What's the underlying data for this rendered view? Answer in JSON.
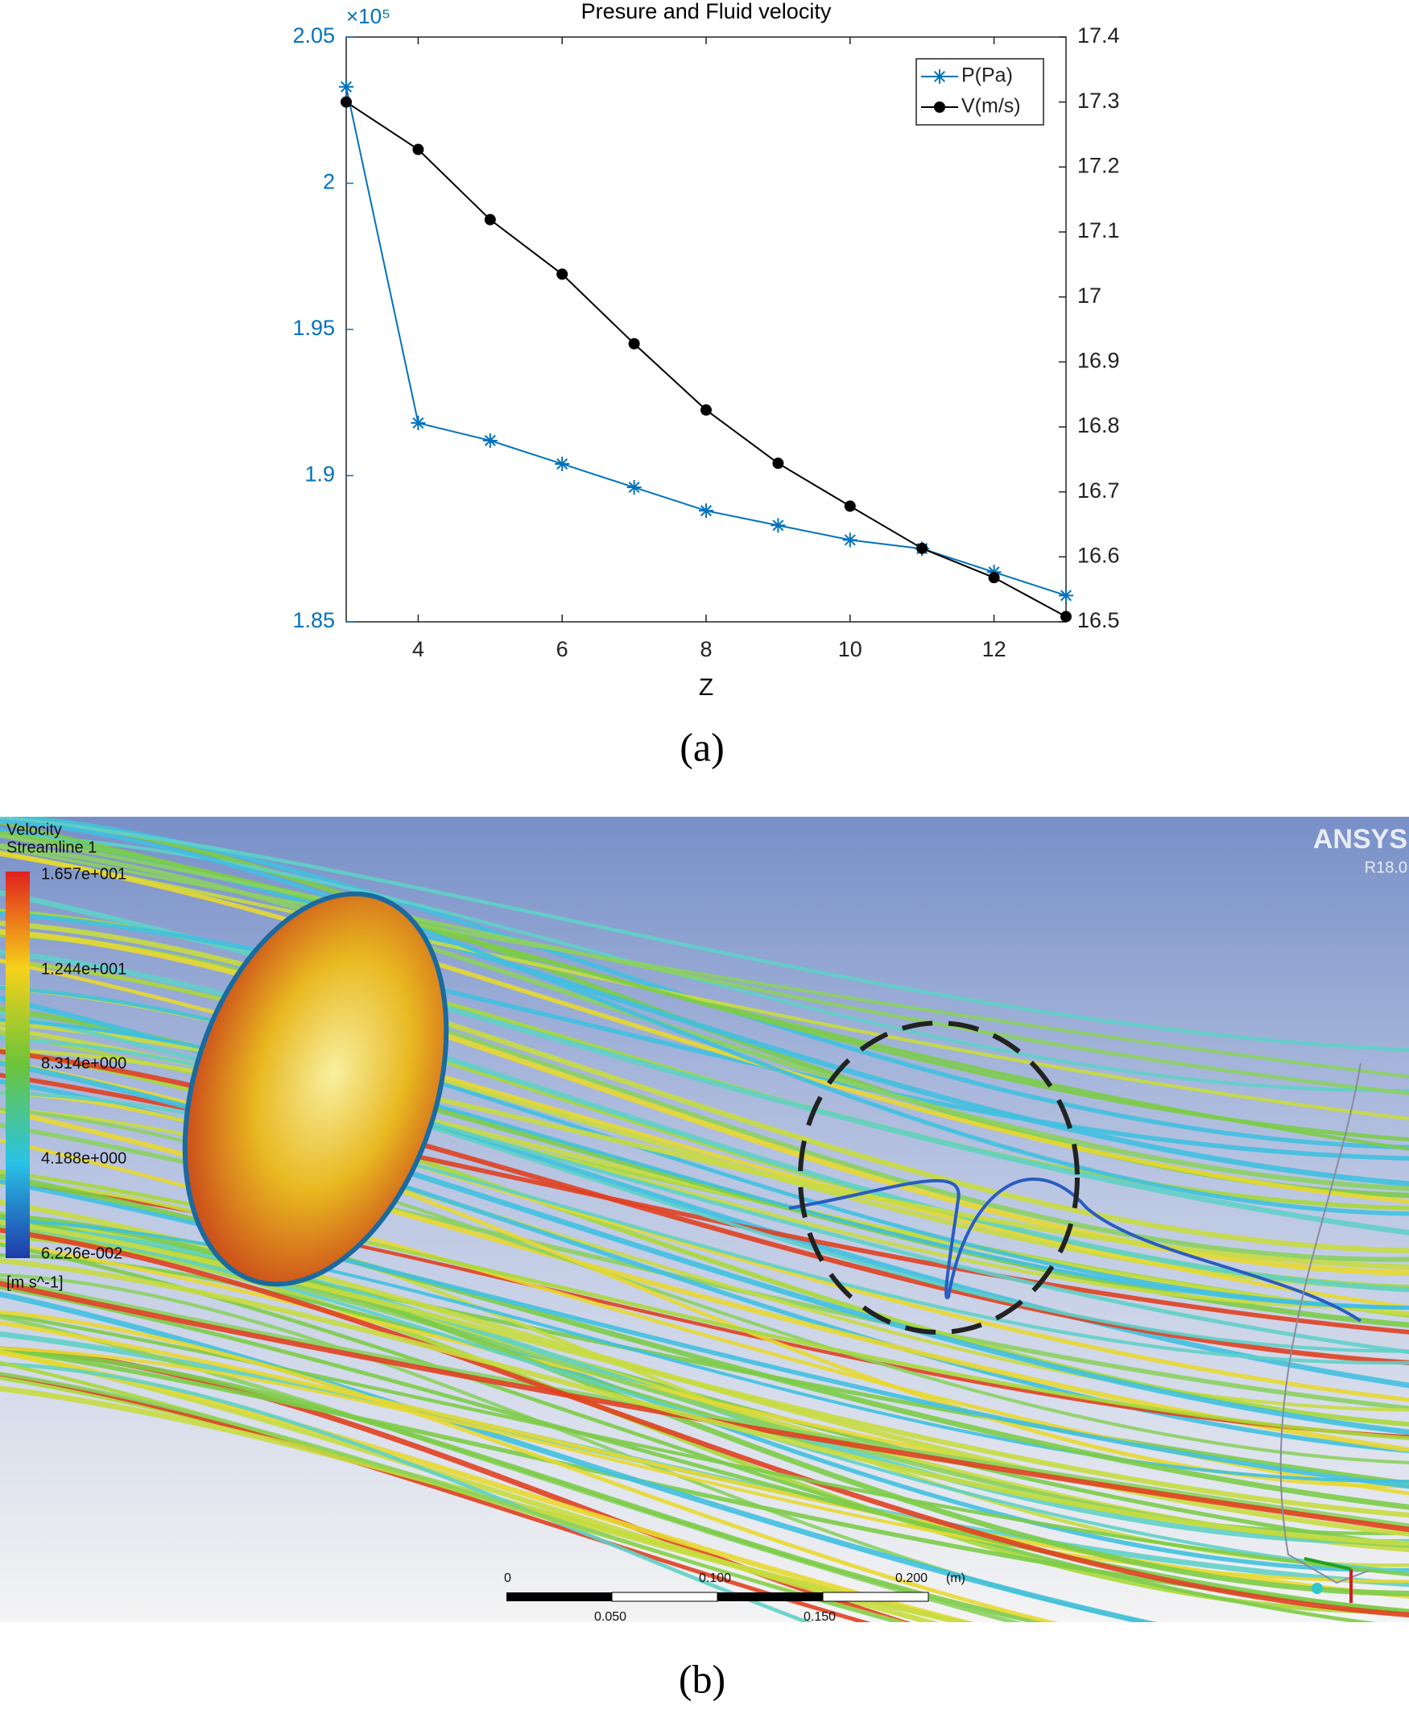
{
  "chart_data": {
    "type": "line",
    "title": "Presure and Fluid velocity",
    "xlabel": "Z",
    "y_offset_text": "×10⁵",
    "x": [
      3,
      4,
      5,
      6,
      7,
      8,
      9,
      10,
      11,
      12,
      13
    ],
    "series": [
      {
        "name": "P(Pa)",
        "color": "#0072bd",
        "marker": "asterisk",
        "values": [
          2.033,
          1.918,
          1.912,
          1.904,
          1.896,
          1.888,
          1.883,
          1.878,
          1.875,
          1.867,
          1.859
        ]
      },
      {
        "name": "V(m/s)",
        "color": "#000000",
        "marker": "circle",
        "axis": "y2",
        "values": [
          17.3,
          17.227,
          17.119,
          17.035,
          16.928,
          16.826,
          16.744,
          16.678,
          16.613,
          16.568,
          16.508
        ]
      }
    ],
    "xlim": [
      3,
      13
    ],
    "xticks": [
      4,
      6,
      8,
      10,
      12
    ],
    "ylim": [
      1.85,
      2.05
    ],
    "yticks": [
      1.85,
      1.9,
      1.95,
      2,
      2.05
    ],
    "y2lim": [
      16.5,
      17.4
    ],
    "y2ticks": [
      16.5,
      16.6,
      16.7,
      16.8,
      16.9,
      17,
      17.1,
      17.2,
      17.3,
      17.4
    ],
    "legend": "upper right",
    "grid": false
  },
  "caption_a": "(a)",
  "figure_b": {
    "legend_title": "Velocity",
    "legend_subtitle": "Streamline 1",
    "colorbar_labels": [
      "1.657e+001",
      "1.244e+001",
      "8.314e+000",
      "4.188e+000",
      "6.226e-002"
    ],
    "colorbar_unit": "[m s^-1]",
    "brand": "ANSYS",
    "version": "R18.0",
    "scale_labels": [
      "0",
      "0.100",
      "0.200"
    ],
    "scale_unit": "(m)",
    "scale_sublabels": [
      "0.050",
      "0.150"
    ]
  },
  "caption_b": "(b)"
}
